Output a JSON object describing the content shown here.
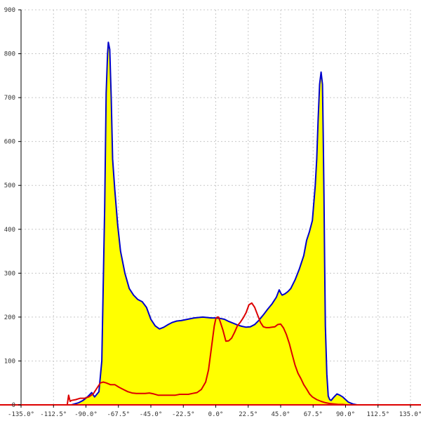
{
  "chart_data": {
    "type": "area",
    "title": "",
    "xlabel": "",
    "ylabel": "",
    "xlim": [
      -135,
      135
    ],
    "ylim": [
      0,
      900
    ],
    "grid": true,
    "x_ticks": [
      -135,
      -112.5,
      -90,
      -67.5,
      -45,
      -22.5,
      0,
      22.5,
      45,
      67.5,
      90,
      112.5,
      135
    ],
    "x_tick_labels": [
      "-135.0°",
      "-112.5°",
      "-90.0°",
      "-67.5°",
      "-45.0°",
      "-22.5°",
      "0.0°",
      "22.5°",
      "45.0°",
      "67.5°",
      "90.0°",
      "112.5°",
      "135.0°"
    ],
    "y_ticks": [
      0,
      100,
      200,
      300,
      400,
      500,
      600,
      700,
      800,
      900
    ],
    "y_tick_labels": [
      "0",
      "100",
      "200",
      "300",
      "400",
      "500",
      "600",
      "700",
      "800",
      "900"
    ],
    "colors": {
      "fill": "#ffff00",
      "blue": "#0000cc",
      "red": "#dd0000",
      "grid": "#c8c8c8"
    },
    "series": [
      {
        "color": "#0000cc",
        "filled": true,
        "x": [
          -100,
          -95,
          -92,
          -89,
          -86,
          -84,
          -81,
          -79,
          -77,
          -76,
          -75,
          -74.5,
          -73.5,
          -72.5,
          -71.5,
          -70,
          -68,
          -66,
          -63,
          -60,
          -57,
          -54,
          -51,
          -48,
          -45,
          -42,
          -39,
          -36,
          -33,
          -30,
          -27,
          -24,
          -21,
          -18,
          -15,
          -12,
          -9,
          -6,
          -3,
          0,
          3,
          6,
          9,
          12,
          15,
          18,
          21,
          24,
          27,
          30,
          33,
          36,
          39,
          42,
          44,
          45,
          46,
          48,
          50,
          52,
          55,
          58,
          61,
          63,
          65,
          67,
          69,
          70,
          71,
          72,
          73,
          74,
          74.5,
          75,
          75.5,
          76,
          77,
          78,
          79,
          80,
          82,
          84,
          86,
          88,
          90,
          92,
          95,
          98,
          102,
          105
        ],
        "y": [
          0,
          5,
          10,
          18,
          28,
          18,
          30,
          100,
          450,
          710,
          800,
          826,
          810,
          700,
          560,
          490,
          410,
          350,
          300,
          265,
          250,
          240,
          235,
          222,
          195,
          180,
          173,
          177,
          183,
          188,
          191,
          192,
          194,
          196,
          198,
          199,
          200,
          199,
          198,
          198,
          197,
          195,
          190,
          186,
          182,
          179,
          177,
          178,
          183,
          193,
          205,
          218,
          230,
          245,
          262,
          255,
          250,
          253,
          258,
          265,
          285,
          310,
          340,
          375,
          395,
          420,
          500,
          560,
          650,
          730,
          758,
          730,
          620,
          480,
          320,
          180,
          70,
          20,
          12,
          10,
          18,
          25,
          22,
          18,
          12,
          6,
          2,
          0,
          0,
          0
        ]
      },
      {
        "color": "#dd0000",
        "filled": false,
        "x": [
          -135,
          -103,
          -102,
          -101,
          -100,
          -97,
          -94,
          -91,
          -88,
          -85,
          -82,
          -80,
          -78,
          -76,
          -73,
          -70,
          -67,
          -64,
          -61,
          -58,
          -55,
          -52,
          -49,
          -46,
          -43,
          -40,
          -37,
          -34,
          -31,
          -28,
          -25,
          -22,
          -19,
          -16,
          -13,
          -10,
          -7,
          -5,
          -3,
          -1,
          0,
          1,
          2,
          3,
          5,
          7,
          9,
          11,
          13,
          15,
          17,
          19,
          21,
          23,
          25,
          27,
          29,
          31,
          33,
          35,
          37,
          39,
          41,
          43,
          45,
          47,
          49,
          51,
          53,
          55,
          57,
          59,
          61,
          63,
          65,
          67,
          70,
          73,
          76,
          79,
          82,
          85,
          88,
          91,
          94,
          97,
          100,
          135
        ],
        "y": [
          0,
          0,
          22,
          8,
          10,
          12,
          15,
          15,
          18,
          25,
          40,
          50,
          52,
          50,
          46,
          46,
          40,
          35,
          30,
          27,
          26,
          26,
          26,
          27,
          25,
          22,
          22,
          22,
          22,
          22,
          24,
          24,
          24,
          26,
          28,
          35,
          52,
          80,
          130,
          180,
          196,
          200,
          200,
          190,
          170,
          145,
          146,
          152,
          165,
          180,
          188,
          198,
          210,
          228,
          232,
          222,
          205,
          188,
          178,
          176,
          176,
          177,
          178,
          183,
          184,
          175,
          160,
          140,
          115,
          90,
          72,
          60,
          46,
          36,
          25,
          18,
          12,
          8,
          5,
          3,
          2,
          1,
          1,
          0,
          0,
          0,
          0,
          0
        ]
      }
    ]
  }
}
